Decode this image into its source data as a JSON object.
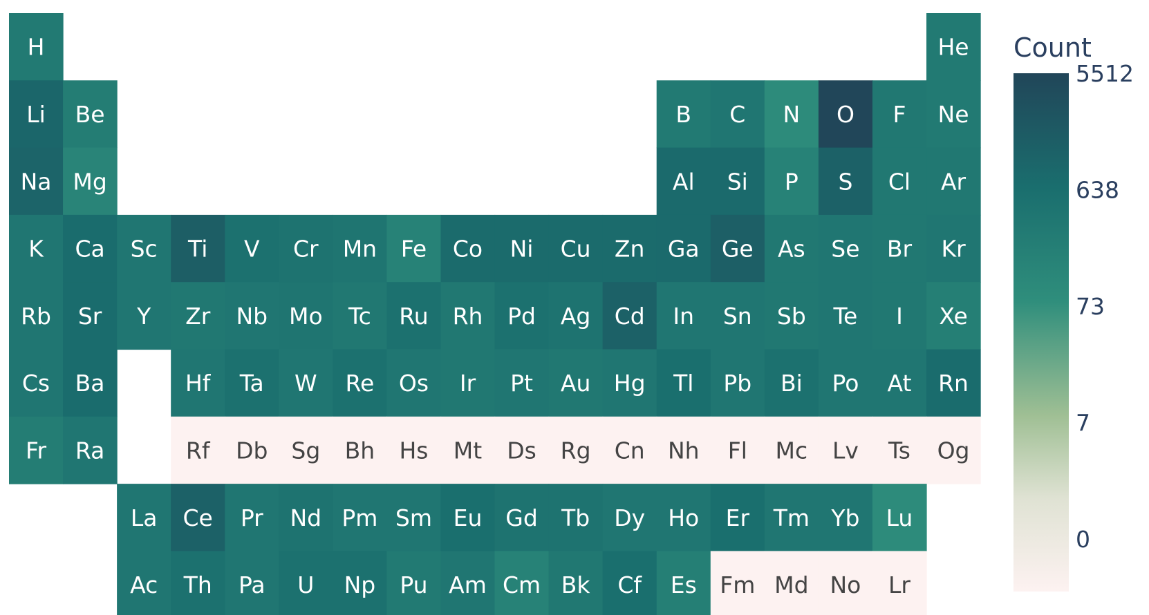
{
  "chart_data": {
    "type": "heatmap",
    "title": "",
    "grid": false,
    "colorbar": {
      "title": "Count",
      "tick_labels": [
        "5512",
        "638",
        "73",
        "7",
        "0"
      ],
      "tick_values": [
        5512,
        638,
        73,
        7,
        0
      ],
      "max": 5512,
      "scale": "log"
    },
    "colors": {
      "empty_cell": "#fdf2f1",
      "light_text": "#ffffff",
      "dark_text": "#444444"
    },
    "elements": [
      {
        "symbol": "H",
        "row": 1,
        "col": 1,
        "count": 400
      },
      {
        "symbol": "He",
        "row": 1,
        "col": 18,
        "count": 400
      },
      {
        "symbol": "Li",
        "row": 2,
        "col": 1,
        "count": 1200
      },
      {
        "symbol": "Be",
        "row": 2,
        "col": 2,
        "count": 350
      },
      {
        "symbol": "B",
        "row": 2,
        "col": 13,
        "count": 400
      },
      {
        "symbol": "C",
        "row": 2,
        "col": 14,
        "count": 500
      },
      {
        "symbol": "N",
        "row": 2,
        "col": 15,
        "count": 150
      },
      {
        "symbol": "O",
        "row": 2,
        "col": 16,
        "count": 5512
      },
      {
        "symbol": "F",
        "row": 2,
        "col": 17,
        "count": 450
      },
      {
        "symbol": "Ne",
        "row": 2,
        "col": 18,
        "count": 400
      },
      {
        "symbol": "Na",
        "row": 3,
        "col": 1,
        "count": 1300
      },
      {
        "symbol": "Mg",
        "row": 3,
        "col": 2,
        "count": 220
      },
      {
        "symbol": "Al",
        "row": 3,
        "col": 13,
        "count": 1000
      },
      {
        "symbol": "Si",
        "row": 3,
        "col": 14,
        "count": 1000
      },
      {
        "symbol": "P",
        "row": 3,
        "col": 15,
        "count": 250
      },
      {
        "symbol": "S",
        "row": 3,
        "col": 16,
        "count": 1500
      },
      {
        "symbol": "Cl",
        "row": 3,
        "col": 17,
        "count": 450
      },
      {
        "symbol": "Ar",
        "row": 3,
        "col": 18,
        "count": 450
      },
      {
        "symbol": "K",
        "row": 4,
        "col": 1,
        "count": 500
      },
      {
        "symbol": "Ca",
        "row": 4,
        "col": 2,
        "count": 900
      },
      {
        "symbol": "Sc",
        "row": 4,
        "col": 3,
        "count": 500
      },
      {
        "symbol": "Ti",
        "row": 4,
        "col": 4,
        "count": 1800
      },
      {
        "symbol": "V",
        "row": 4,
        "col": 5,
        "count": 700
      },
      {
        "symbol": "Cr",
        "row": 4,
        "col": 6,
        "count": 600
      },
      {
        "symbol": "Mn",
        "row": 4,
        "col": 7,
        "count": 550
      },
      {
        "symbol": "Fe",
        "row": 4,
        "col": 8,
        "count": 250
      },
      {
        "symbol": "Co",
        "row": 4,
        "col": 9,
        "count": 950
      },
      {
        "symbol": "Ni",
        "row": 4,
        "col": 10,
        "count": 950
      },
      {
        "symbol": "Cu",
        "row": 4,
        "col": 11,
        "count": 950
      },
      {
        "symbol": "Zn",
        "row": 4,
        "col": 12,
        "count": 950
      },
      {
        "symbol": "Ga",
        "row": 4,
        "col": 13,
        "count": 1000
      },
      {
        "symbol": "Ge",
        "row": 4,
        "col": 14,
        "count": 1700
      },
      {
        "symbol": "As",
        "row": 4,
        "col": 15,
        "count": 450
      },
      {
        "symbol": "Se",
        "row": 4,
        "col": 16,
        "count": 500
      },
      {
        "symbol": "Br",
        "row": 4,
        "col": 17,
        "count": 450
      },
      {
        "symbol": "Kr",
        "row": 4,
        "col": 18,
        "count": 500
      },
      {
        "symbol": "Rb",
        "row": 5,
        "col": 1,
        "count": 500
      },
      {
        "symbol": "Sr",
        "row": 5,
        "col": 2,
        "count": 900
      },
      {
        "symbol": "Y",
        "row": 5,
        "col": 3,
        "count": 500
      },
      {
        "symbol": "Zr",
        "row": 5,
        "col": 4,
        "count": 450
      },
      {
        "symbol": "Nb",
        "row": 5,
        "col": 5,
        "count": 500
      },
      {
        "symbol": "Mo",
        "row": 5,
        "col": 6,
        "count": 550
      },
      {
        "symbol": "Tc",
        "row": 5,
        "col": 7,
        "count": 450
      },
      {
        "symbol": "Ru",
        "row": 5,
        "col": 8,
        "count": 700
      },
      {
        "symbol": "Rh",
        "row": 5,
        "col": 9,
        "count": 450
      },
      {
        "symbol": "Pd",
        "row": 5,
        "col": 10,
        "count": 700
      },
      {
        "symbol": "Ag",
        "row": 5,
        "col": 11,
        "count": 600
      },
      {
        "symbol": "Cd",
        "row": 5,
        "col": 12,
        "count": 1500
      },
      {
        "symbol": "In",
        "row": 5,
        "col": 13,
        "count": 500
      },
      {
        "symbol": "Sn",
        "row": 5,
        "col": 14,
        "count": 500
      },
      {
        "symbol": "Sb",
        "row": 5,
        "col": 15,
        "count": 450
      },
      {
        "symbol": "Te",
        "row": 5,
        "col": 16,
        "count": 500
      },
      {
        "symbol": "I",
        "row": 5,
        "col": 17,
        "count": 450
      },
      {
        "symbol": "Xe",
        "row": 5,
        "col": 18,
        "count": 300
      },
      {
        "symbol": "Cs",
        "row": 6,
        "col": 1,
        "count": 500
      },
      {
        "symbol": "Ba",
        "row": 6,
        "col": 2,
        "count": 900
      },
      {
        "symbol": "Hf",
        "row": 6,
        "col": 4,
        "count": 500
      },
      {
        "symbol": "Ta",
        "row": 6,
        "col": 5,
        "count": 700
      },
      {
        "symbol": "W",
        "row": 6,
        "col": 6,
        "count": 500
      },
      {
        "symbol": "Re",
        "row": 6,
        "col": 7,
        "count": 700
      },
      {
        "symbol": "Os",
        "row": 6,
        "col": 8,
        "count": 500
      },
      {
        "symbol": "Ir",
        "row": 6,
        "col": 9,
        "count": 450
      },
      {
        "symbol": "Pt",
        "row": 6,
        "col": 10,
        "count": 500
      },
      {
        "symbol": "Au",
        "row": 6,
        "col": 11,
        "count": 450
      },
      {
        "symbol": "Hg",
        "row": 6,
        "col": 12,
        "count": 500
      },
      {
        "symbol": "Tl",
        "row": 6,
        "col": 13,
        "count": 800
      },
      {
        "symbol": "Pb",
        "row": 6,
        "col": 14,
        "count": 500
      },
      {
        "symbol": "Bi",
        "row": 6,
        "col": 15,
        "count": 700
      },
      {
        "symbol": "Po",
        "row": 6,
        "col": 16,
        "count": 500
      },
      {
        "symbol": "At",
        "row": 6,
        "col": 17,
        "count": 500
      },
      {
        "symbol": "Rn",
        "row": 6,
        "col": 18,
        "count": 900
      },
      {
        "symbol": "Fr",
        "row": 7,
        "col": 1,
        "count": 350
      },
      {
        "symbol": "Ra",
        "row": 7,
        "col": 2,
        "count": 500
      },
      {
        "symbol": "Rf",
        "row": 7,
        "col": 4,
        "count": 0
      },
      {
        "symbol": "Db",
        "row": 7,
        "col": 5,
        "count": 0
      },
      {
        "symbol": "Sg",
        "row": 7,
        "col": 6,
        "count": 0
      },
      {
        "symbol": "Bh",
        "row": 7,
        "col": 7,
        "count": 0
      },
      {
        "symbol": "Hs",
        "row": 7,
        "col": 8,
        "count": 0
      },
      {
        "symbol": "Mt",
        "row": 7,
        "col": 9,
        "count": 0
      },
      {
        "symbol": "Ds",
        "row": 7,
        "col": 10,
        "count": 0
      },
      {
        "symbol": "Rg",
        "row": 7,
        "col": 11,
        "count": 0
      },
      {
        "symbol": "Cn",
        "row": 7,
        "col": 12,
        "count": 0
      },
      {
        "symbol": "Nh",
        "row": 7,
        "col": 13,
        "count": 0
      },
      {
        "symbol": "Fl",
        "row": 7,
        "col": 14,
        "count": 0
      },
      {
        "symbol": "Mc",
        "row": 7,
        "col": 15,
        "count": 0
      },
      {
        "symbol": "Lv",
        "row": 7,
        "col": 16,
        "count": 0
      },
      {
        "symbol": "Ts",
        "row": 7,
        "col": 17,
        "count": 0
      },
      {
        "symbol": "Og",
        "row": 7,
        "col": 18,
        "count": 0
      },
      {
        "symbol": "La",
        "row": 8,
        "col": 3,
        "count": 500
      },
      {
        "symbol": "Ce",
        "row": 8,
        "col": 4,
        "count": 1500
      },
      {
        "symbol": "Pr",
        "row": 8,
        "col": 5,
        "count": 500
      },
      {
        "symbol": "Nd",
        "row": 8,
        "col": 6,
        "count": 600
      },
      {
        "symbol": "Pm",
        "row": 8,
        "col": 7,
        "count": 500
      },
      {
        "symbol": "Sm",
        "row": 8,
        "col": 8,
        "count": 500
      },
      {
        "symbol": "Eu",
        "row": 8,
        "col": 9,
        "count": 800
      },
      {
        "symbol": "Gd",
        "row": 8,
        "col": 10,
        "count": 600
      },
      {
        "symbol": "Tb",
        "row": 8,
        "col": 11,
        "count": 600
      },
      {
        "symbol": "Dy",
        "row": 8,
        "col": 12,
        "count": 500
      },
      {
        "symbol": "Ho",
        "row": 8,
        "col": 13,
        "count": 500
      },
      {
        "symbol": "Er",
        "row": 8,
        "col": 14,
        "count": 800
      },
      {
        "symbol": "Tm",
        "row": 8,
        "col": 15,
        "count": 500
      },
      {
        "symbol": "Yb",
        "row": 8,
        "col": 16,
        "count": 500
      },
      {
        "symbol": "Lu",
        "row": 8,
        "col": 17,
        "count": 150
      },
      {
        "symbol": "Ac",
        "row": 9,
        "col": 3,
        "count": 500
      },
      {
        "symbol": "Th",
        "row": 9,
        "col": 4,
        "count": 700
      },
      {
        "symbol": "Pa",
        "row": 9,
        "col": 5,
        "count": 500
      },
      {
        "symbol": "U",
        "row": 9,
        "col": 6,
        "count": 700
      },
      {
        "symbol": "Np",
        "row": 9,
        "col": 7,
        "count": 700
      },
      {
        "symbol": "Pu",
        "row": 9,
        "col": 8,
        "count": 400
      },
      {
        "symbol": "Am",
        "row": 9,
        "col": 9,
        "count": 500
      },
      {
        "symbol": "Cm",
        "row": 9,
        "col": 10,
        "count": 250
      },
      {
        "symbol": "Bk",
        "row": 9,
        "col": 11,
        "count": 450
      },
      {
        "symbol": "Cf",
        "row": 9,
        "col": 12,
        "count": 800
      },
      {
        "symbol": "Es",
        "row": 9,
        "col": 13,
        "count": 300
      },
      {
        "symbol": "Fm",
        "row": 9,
        "col": 14,
        "count": 0
      },
      {
        "symbol": "Md",
        "row": 9,
        "col": 15,
        "count": 0
      },
      {
        "symbol": "No",
        "row": 9,
        "col": 16,
        "count": 0
      },
      {
        "symbol": "Lr",
        "row": 9,
        "col": 17,
        "count": 0
      }
    ]
  }
}
